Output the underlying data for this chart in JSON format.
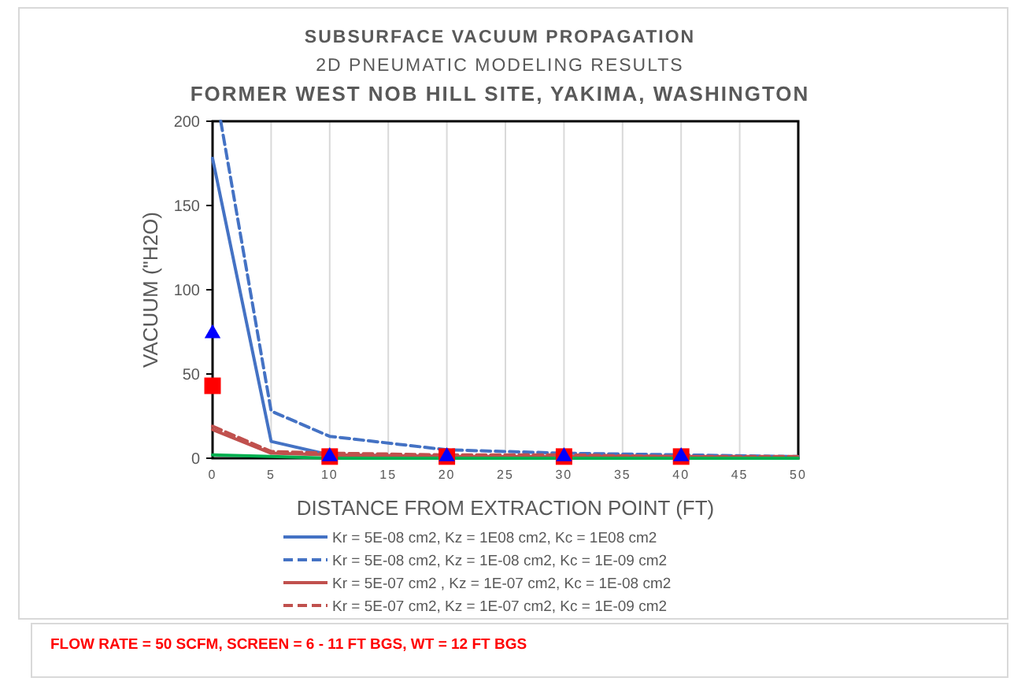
{
  "chart_data": {
    "type": "line",
    "title": "SUBSURFACE VACUUM PROPAGATION",
    "subtitle": "2D PNEUMATIC MODELING RESULTS\nFORMER WEST NOB HILL SITE, YAKIMA, WASHINGTON",
    "xlabel": "DISTANCE FROM EXTRACTION POINT (FT)",
    "ylabel": "VACUUM (\"H2O)",
    "x": [
      0,
      5,
      10,
      20,
      30,
      40,
      50
    ],
    "xlim": [
      0,
      50
    ],
    "xticks": [
      0,
      5,
      10,
      15,
      20,
      25,
      30,
      35,
      40,
      45,
      50
    ],
    "ylim": [
      0,
      200
    ],
    "yticks": [
      0,
      50,
      100,
      150,
      200
    ],
    "grid": "x",
    "legend": "bottom",
    "marker": "none",
    "series": [
      {
        "name": "Kr = 5E-08 cm2, Kz = 1E08 cm2, Kc = 1E08 cm2",
        "color": "#4472c4",
        "line_style": "solid",
        "values": [
          178,
          10,
          2,
          1,
          0,
          0,
          0
        ]
      },
      {
        "name": "Kr = 5E-08 cm2, Kz = 1E-08 cm2, Kc = 1E-09 cm2",
        "color": "#4472c4",
        "line_style": "dashed",
        "x": [
          0.7,
          5,
          10,
          20,
          30,
          40,
          50
        ],
        "values": [
          200,
          28,
          13,
          5,
          3,
          2,
          1
        ]
      },
      {
        "name": "Kr = 5E-07 cm2 , Kz = 1E-07 cm2, Kc = 1E-08 cm2",
        "color": "#c0504d",
        "line_style": "solid",
        "values": [
          17,
          3,
          2,
          1,
          1,
          1,
          0
        ]
      },
      {
        "name": "Kr = 5E-07 cm2, Kz = 1E-07 cm2, Kc = 1E-09 cm2",
        "color": "#c0504d",
        "line_style": "dashed",
        "values": [
          19,
          4,
          3,
          2,
          2,
          1,
          1
        ]
      },
      {
        "color": "#00b050",
        "line_style": "solid",
        "values": [
          2,
          1,
          0,
          0,
          0,
          0,
          0
        ]
      },
      {
        "type": "scatter",
        "marker": "square",
        "color": "#ff0000",
        "x": [
          0,
          10,
          20,
          30,
          40
        ],
        "values": [
          43,
          1,
          1,
          1,
          1
        ]
      },
      {
        "type": "scatter",
        "marker": "triangle",
        "color": "#0000ff",
        "x": [
          0,
          10,
          20,
          30,
          40
        ],
        "values": [
          74,
          1,
          1,
          1,
          1
        ]
      }
    ],
    "annotations": [
      "FLOW RATE = 50 SCFM, SCREEN = 6 - 11 FT BGS, WT = 12 FT BGS"
    ]
  }
}
